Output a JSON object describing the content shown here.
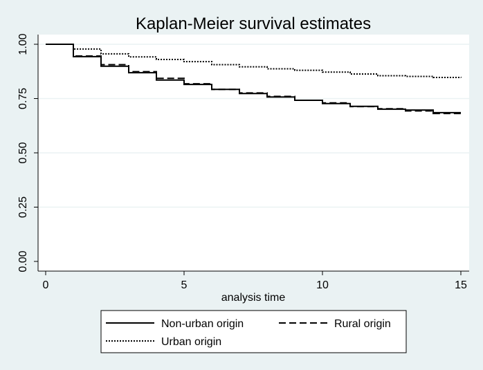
{
  "chart_data": {
    "type": "line",
    "title": "Kaplan-Meier survival estimates",
    "xlabel": "analysis time",
    "ylabel": "",
    "xlim": [
      0,
      15
    ],
    "ylim": [
      0,
      1
    ],
    "x_ticks": [
      0,
      5,
      10,
      15
    ],
    "x_tick_labels": [
      "0",
      "5",
      "10",
      "15"
    ],
    "y_ticks": [
      0,
      0.25,
      0.5,
      0.75,
      1
    ],
    "y_tick_labels": [
      "0.00",
      "0.25",
      "0.50",
      "0.75",
      "1.00"
    ],
    "grid": "horizontal",
    "legend_position": "bottom",
    "series": [
      {
        "name": "Non-urban origin",
        "style": "solid",
        "color": "#000000",
        "x": [
          0,
          1,
          2,
          3,
          4,
          5,
          6,
          7,
          8,
          9,
          10,
          11,
          12,
          13,
          14,
          15
        ],
        "y": [
          1.0,
          0.943,
          0.899,
          0.869,
          0.835,
          0.815,
          0.792,
          0.773,
          0.757,
          0.742,
          0.727,
          0.714,
          0.701,
          0.697,
          0.685,
          0.685
        ]
      },
      {
        "name": "Rural origin",
        "style": "dashed",
        "color": "#000000",
        "x": [
          0,
          1,
          2,
          3,
          4,
          5,
          6,
          7,
          8,
          9,
          10,
          11,
          12,
          13,
          14,
          15
        ],
        "y": [
          1.0,
          0.946,
          0.906,
          0.874,
          0.843,
          0.818,
          0.792,
          0.776,
          0.76,
          0.742,
          0.73,
          0.713,
          0.703,
          0.693,
          0.681,
          0.677
        ]
      },
      {
        "name": "Urban origin",
        "style": "dotted",
        "color": "#000000",
        "x": [
          0,
          1,
          2,
          3,
          4,
          5,
          6,
          7,
          8,
          9,
          10,
          11,
          12,
          13,
          14,
          15
        ],
        "y": [
          1.0,
          0.978,
          0.956,
          0.942,
          0.93,
          0.92,
          0.906,
          0.896,
          0.887,
          0.88,
          0.872,
          0.863,
          0.855,
          0.852,
          0.847,
          0.846
        ]
      }
    ]
  },
  "colors": {
    "page_background": "#eaf2f3",
    "plot_background": "#ffffff",
    "grid": "#eaf2f3",
    "ink": "#000000"
  }
}
